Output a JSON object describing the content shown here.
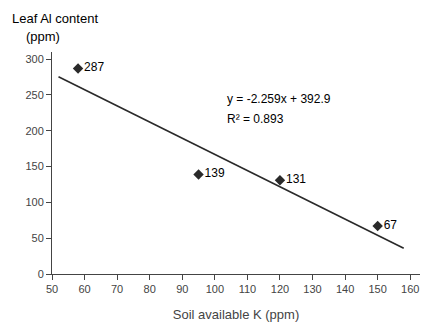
{
  "chart_data": {
    "type": "scatter",
    "xlabel": "Soil available K (ppm)",
    "ylabel": [
      "Leaf Al content",
      "(ppm)"
    ],
    "series": [
      {
        "type": "line",
        "x": [
          52,
          158
        ],
        "values": [
          275.432,
          35.978
        ],
        "color": "#2a2a2a"
      },
      {
        "type": "scatter",
        "x": [
          58,
          95,
          120,
          150
        ],
        "values": [
          287,
          139,
          131,
          67
        ],
        "color": "#2a2a2a",
        "marker": "diamond"
      }
    ],
    "data_labels": true,
    "annotations": [
      "y = -2.259x + 392.9",
      "R² = 0.893"
    ],
    "xlim": [
      50,
      163
    ],
    "xticks": [
      50,
      60,
      70,
      80,
      90,
      100,
      110,
      120,
      130,
      140,
      150,
      160
    ],
    "ylim": [
      0,
      310
    ],
    "yticks": [
      0,
      50,
      100,
      150,
      200,
      250,
      300
    ],
    "grid": false
  }
}
